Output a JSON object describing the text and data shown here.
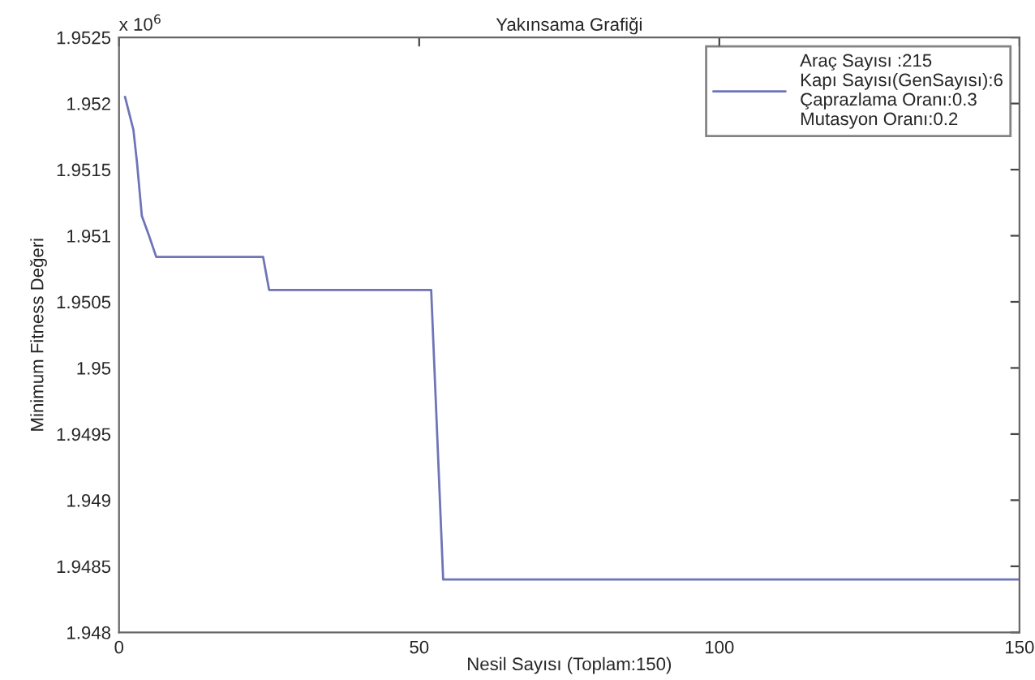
{
  "chart_data": {
    "type": "line",
    "title": "Yakınsama Grafiği",
    "xlabel": "Nesil Sayısı (Toplam:150)",
    "ylabel": "Minimum Fitness Değeri",
    "annotations": [
      "x 10$^{6}$"
    ],
    "series": [
      {
        "name": "Araç Sayısı :215\nKapı Sayısı(GenSayısı):6\nÇaprazlama Oranı:0.3\nMutasyon Oranı:0.2",
        "color": "#6f74b8",
        "x": [
          1,
          2.4,
          3,
          3.8,
          5,
          6.2,
          24,
          25,
          52,
          54,
          150
        ],
        "values": [
          1.95205,
          1.9518,
          1.95155,
          1.95115,
          1.951,
          1.95084,
          1.95084,
          1.95059,
          1.95059,
          1.9484,
          1.9484
        ]
      }
    ],
    "xlim": [
      0,
      150
    ],
    "xticks": [
      0,
      50,
      100,
      150
    ],
    "ylim": [
      1.948,
      1.9525
    ],
    "yticks": [
      1.948,
      1.9485,
      1.949,
      1.9495,
      1.95,
      1.9505,
      1.951,
      1.9515,
      1.952,
      1.9525
    ],
    "grid": false,
    "legend": "top right"
  }
}
